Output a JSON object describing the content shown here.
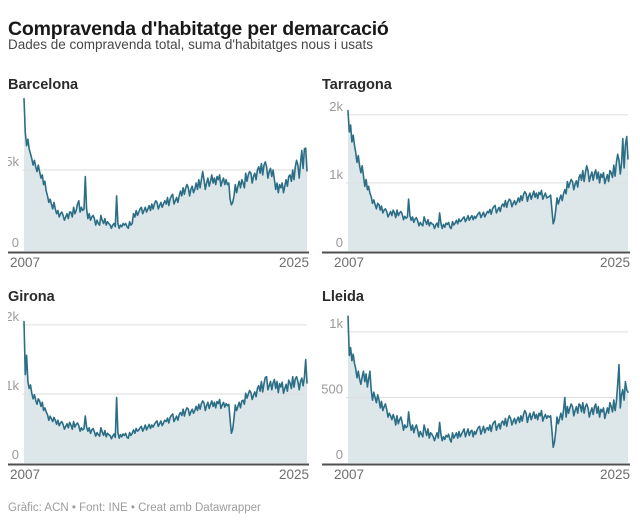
{
  "header": {
    "title": "Compravenda d'habitatge per demarcació",
    "subtitle": "Dades de compravenda total, suma d'habitatges nous i usats"
  },
  "footer": {
    "text": "Gràfic: ACN • Font: INE • Creat amb Datawrapper"
  },
  "colors": {
    "line": "#2b6e86",
    "area_fill": "#dde7ea",
    "grid": "#dedede",
    "axis": "#4f4f4f",
    "y_tick_label": "#9a9a9a",
    "x_tick_label": "#6e6e6e"
  },
  "chart_data": [
    {
      "type": "area",
      "title": "Barcelona",
      "x_tick_labels": [
        "2007",
        "2025"
      ],
      "y_ticks": [
        {
          "value": 5000,
          "label": "5k"
        },
        {
          "value": 0,
          "label": "0"
        }
      ],
      "y_max": 9630,
      "frequency": "monthly",
      "values": [
        9400,
        7300,
        6500,
        6900,
        6300,
        6000,
        5700,
        5300,
        5600,
        5200,
        4900,
        5300,
        4900,
        4500,
        4700,
        4100,
        4300,
        3700,
        3400,
        3000,
        3200,
        2900,
        2600,
        3000,
        2600,
        2300,
        2500,
        2100,
        2300,
        2400,
        2200,
        1900,
        2100,
        2300,
        2000,
        2400,
        2400,
        2100,
        2700,
        2300,
        2500,
        2900,
        3100,
        2400,
        2700,
        2500,
        2600,
        4600,
        2600,
        2000,
        2300,
        1900,
        2100,
        2200,
        2000,
        1600,
        1900,
        1700,
        1600,
        2200,
        1900,
        1700,
        2000,
        1600,
        1800,
        1700,
        1600,
        1400,
        1600,
        1700,
        1500,
        3400,
        1700,
        1400,
        1600,
        1500,
        1700,
        1600,
        1700,
        1500,
        1400,
        1800,
        1600,
        1700,
        2300,
        2100,
        2500,
        2200,
        2400,
        2600,
        2700,
        2300,
        2500,
        2700,
        2400,
        2600,
        2800,
        2500,
        2900,
        2600,
        2900,
        3100,
        3000,
        2600,
        2800,
        3000,
        2700,
        2900,
        3100,
        2900,
        3300,
        2800,
        3200,
        3400,
        3500,
        2900,
        3100,
        3300,
        3000,
        3400,
        3700,
        3400,
        3900,
        3500,
        3900,
        4100,
        3900,
        3400,
        3800,
        4000,
        3600,
        3800,
        4200,
        3800,
        4400,
        3900,
        4400,
        4900,
        4400,
        3800,
        4200,
        4500,
        4000,
        4300,
        4700,
        4200,
        4500,
        4100,
        4600,
        4400,
        4700,
        4000,
        4300,
        4500,
        4100,
        4400,
        4100,
        4200,
        3200,
        2850,
        3000,
        3400,
        4100,
        3600,
        4000,
        4300,
        3900,
        4400,
        4200,
        3900,
        4800,
        4300,
        4700,
        4900,
        4800,
        4200,
        4600,
        4800,
        4400,
        5000,
        5200,
        4800,
        5400,
        4700,
        5300,
        5500,
        5200,
        4500,
        4900,
        5100,
        4600,
        5000,
        4400,
        3800,
        4200,
        3600,
        4100,
        3900,
        4200,
        3600,
        4000,
        4400,
        4000,
        4600,
        4700,
        4300,
        5000,
        4400,
        5200,
        5600,
        5300,
        4500,
        5400,
        6200,
        5100,
        6300,
        6350,
        4950
      ]
    },
    {
      "type": "area",
      "title": "Tarragona",
      "x_tick_labels": [
        "2007",
        "2025"
      ],
      "y_ticks": [
        {
          "value": 2000,
          "label": "2k"
        },
        {
          "value": 1000,
          "label": "1k"
        },
        {
          "value": 0,
          "label": "0"
        }
      ],
      "y_max": 2290,
      "frequency": "monthly",
      "values": [
        2060,
        1750,
        1850,
        1600,
        1700,
        1550,
        1450,
        1300,
        1400,
        1250,
        1150,
        1250,
        1100,
        950,
        1050,
        900,
        950,
        850,
        800,
        700,
        750,
        680,
        620,
        700,
        680,
        600,
        660,
        560,
        600,
        620,
        580,
        500,
        540,
        580,
        520,
        600,
        560,
        490,
        600,
        520,
        560,
        580,
        540,
        460,
        510,
        480,
        500,
        760,
        520,
        450,
        500,
        420,
        470,
        490,
        440,
        370,
        420,
        390,
        370,
        500,
        440,
        390,
        460,
        370,
        420,
        400,
        390,
        330,
        380,
        410,
        350,
        560,
        410,
        330,
        390,
        350,
        410,
        390,
        420,
        350,
        330,
        430,
        380,
        410,
        450,
        400,
        470,
        430,
        450,
        480,
        500,
        430,
        470,
        520,
        450,
        490,
        520,
        460,
        510,
        480,
        520,
        550,
        570,
        490,
        530,
        570,
        500,
        540,
        580,
        560,
        610,
        540,
        620,
        650,
        670,
        560,
        600,
        640,
        580,
        660,
        690,
        650,
        740,
        640,
        720,
        760,
        740,
        650,
        700,
        740,
        680,
        720,
        780,
        720,
        810,
        740,
        830,
        870,
        840,
        730,
        800,
        850,
        760,
        820,
        880,
        790,
        850,
        770,
        860,
        830,
        890,
        760,
        810,
        850,
        780,
        790,
        800,
        820,
        610,
        400,
        460,
        600,
        780,
        690,
        760,
        820,
        740,
        840,
        900,
        840,
        1020,
        930,
        1000,
        1050,
        1020,
        900,
        980,
        1030,
        940,
        1080,
        1120,
        1040,
        1180,
        1020,
        1150,
        1250,
        1180,
        1020,
        1100,
        1160,
        1040,
        1140,
        1190,
        1060,
        1160,
        1000,
        1130,
        1080,
        1150,
        990,
        1060,
        1120,
        1020,
        1180,
        1150,
        1080,
        1260,
        1100,
        1300,
        1420,
        1330,
        1130,
        1280,
        1650,
        1220,
        1560,
        1680,
        1350
      ]
    },
    {
      "type": "area",
      "title": "Girona",
      "x_tick_labels": [
        "2007",
        "2025"
      ],
      "y_ticks": [
        {
          "value": 2000,
          "label": "2k"
        },
        {
          "value": 1000,
          "label": "1k"
        },
        {
          "value": 0,
          "label": "0"
        }
      ],
      "y_max": 2260,
      "frequency": "monthly",
      "values": [
        2050,
        1280,
        1560,
        1180,
        1080,
        1130,
        1010,
        930,
        990,
        910,
        850,
        930,
        900,
        820,
        880,
        760,
        800,
        740,
        700,
        620,
        680,
        640,
        600,
        660,
        620,
        560,
        620,
        540,
        580,
        600,
        560,
        490,
        530,
        570,
        510,
        590,
        550,
        490,
        600,
        520,
        560,
        580,
        540,
        460,
        510,
        480,
        500,
        680,
        520,
        460,
        510,
        430,
        480,
        500,
        450,
        390,
        440,
        410,
        390,
        510,
        450,
        400,
        470,
        380,
        430,
        410,
        400,
        350,
        390,
        420,
        370,
        950,
        440,
        360,
        410,
        380,
        420,
        400,
        430,
        370,
        360,
        440,
        400,
        430,
        480,
        430,
        500,
        460,
        480,
        510,
        530,
        460,
        500,
        550,
        480,
        520,
        560,
        500,
        550,
        520,
        560,
        590,
        610,
        530,
        570,
        610,
        540,
        580,
        620,
        600,
        650,
        580,
        660,
        690,
        710,
        600,
        640,
        680,
        620,
        700,
        730,
        690,
        780,
        680,
        760,
        800,
        780,
        690,
        740,
        780,
        720,
        760,
        820,
        760,
        850,
        780,
        860,
        900,
        870,
        760,
        830,
        880,
        790,
        850,
        900,
        820,
        880,
        800,
        890,
        860,
        920,
        790,
        840,
        880,
        810,
        860,
        830,
        850,
        630,
        430,
        490,
        650,
        840,
        760,
        820,
        880,
        800,
        900,
        910,
        850,
        1010,
        940,
        1000,
        1050,
        1020,
        920,
        980,
        1030,
        960,
        1080,
        1120,
        1040,
        1180,
        1030,
        1150,
        1240,
        1250,
        1060,
        1120,
        1180,
        1060,
        1160,
        1210,
        1080,
        1180,
        1020,
        1150,
        1100,
        1170,
        1010,
        1080,
        1140,
        1040,
        1200,
        1160,
        1080,
        1250,
        1100,
        1220,
        1250,
        1180,
        1060,
        1180,
        1230,
        1120,
        1240,
        1500,
        1160
      ]
    },
    {
      "type": "area",
      "title": "Lleida",
      "x_tick_labels": [
        "2007",
        "2025"
      ],
      "y_ticks": [
        {
          "value": 1000,
          "label": "1k"
        },
        {
          "value": 500,
          "label": "500"
        },
        {
          "value": 0,
          "label": "0"
        }
      ],
      "y_max": 1190,
      "frequency": "monthly",
      "values": [
        1120,
        820,
        880,
        780,
        830,
        760,
        720,
        650,
        700,
        640,
        600,
        660,
        700,
        620,
        680,
        580,
        640,
        700,
        560,
        480,
        540,
        500,
        460,
        520,
        480,
        420,
        470,
        400,
        430,
        450,
        410,
        350,
        380,
        360,
        330,
        370,
        340,
        290,
        360,
        300,
        330,
        350,
        310,
        250,
        290,
        270,
        280,
        390,
        300,
        250,
        290,
        230,
        270,
        290,
        250,
        200,
        240,
        220,
        200,
        290,
        250,
        210,
        260,
        190,
        230,
        220,
        200,
        170,
        200,
        230,
        190,
        310,
        220,
        170,
        200,
        180,
        210,
        200,
        220,
        180,
        160,
        230,
        190,
        210,
        230,
        190,
        240,
        200,
        220,
        240,
        260,
        200,
        230,
        260,
        210,
        240,
        250,
        200,
        240,
        220,
        250,
        270,
        280,
        220,
        250,
        280,
        230,
        260,
        270,
        250,
        290,
        240,
        290,
        310,
        320,
        250,
        280,
        300,
        260,
        310,
        320,
        290,
        340,
        280,
        330,
        360,
        340,
        290,
        320,
        340,
        300,
        330,
        350,
        310,
        360,
        320,
        370,
        400,
        380,
        310,
        350,
        380,
        330,
        360,
        390,
        340,
        370,
        330,
        380,
        360,
        400,
        320,
        350,
        370,
        340,
        360,
        350,
        360,
        250,
        120,
        160,
        240,
        350,
        300,
        340,
        380,
        330,
        400,
        500,
        350,
        430,
        380,
        420,
        450,
        430,
        360,
        400,
        430,
        380,
        450,
        440,
        390,
        460,
        380,
        430,
        450,
        420,
        350,
        390,
        420,
        370,
        430,
        450,
        380,
        430,
        350,
        410,
        390,
        420,
        340,
        380,
        420,
        380,
        460,
        430,
        390,
        480,
        400,
        470,
        600,
        750,
        420,
        520,
        560,
        480,
        620,
        560,
        540
      ]
    }
  ]
}
